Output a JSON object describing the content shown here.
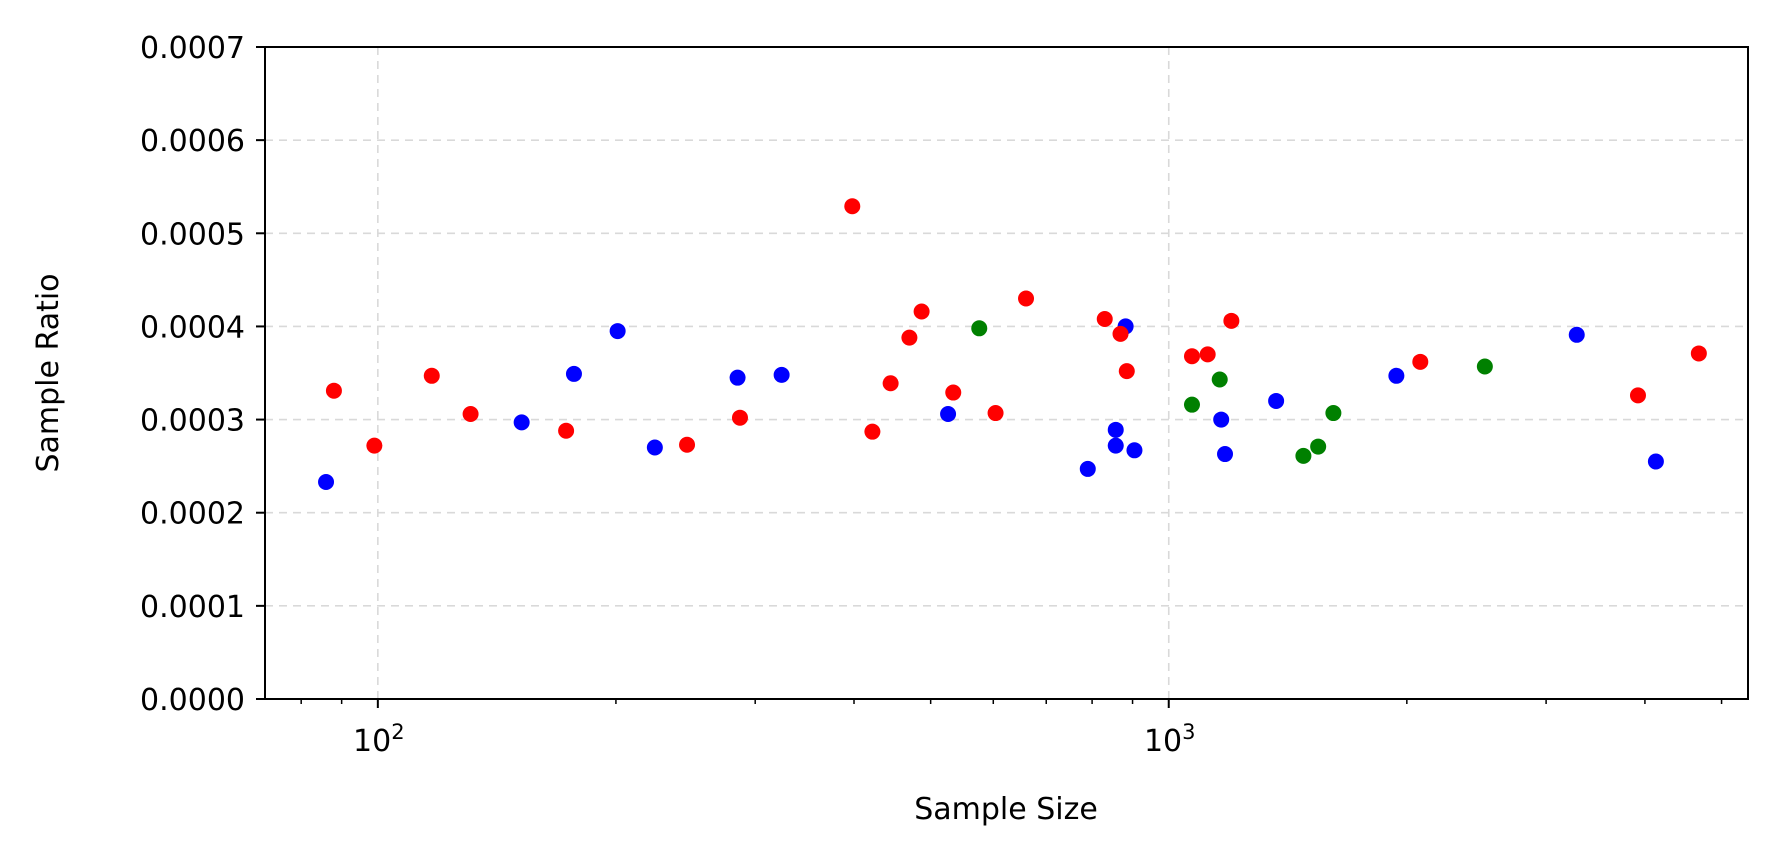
{
  "chart_data": {
    "type": "scatter",
    "title": "",
    "xlabel": "Sample Size",
    "ylabel": "Sample Ratio",
    "x_scale": "log",
    "xlim": [
      72,
      5400
    ],
    "ylim": [
      0,
      0.0007
    ],
    "yticks": [
      "0.0000",
      "0.0001",
      "0.0002",
      "0.0003",
      "0.0004",
      "0.0005",
      "0.0006",
      "0.0007"
    ],
    "xticks": [
      {
        "value": 100,
        "base": "10",
        "exp": "2"
      },
      {
        "value": 1000,
        "base": "10",
        "exp": "3"
      }
    ],
    "grid": true,
    "legend": "none",
    "series": [
      {
        "color": "#0000ff",
        "points": [
          {
            "x": 86,
            "y": 0.000233
          },
          {
            "x": 152,
            "y": 0.000297
          },
          {
            "x": 177,
            "y": 0.000349
          },
          {
            "x": 201,
            "y": 0.000395
          },
          {
            "x": 224,
            "y": 0.00027
          },
          {
            "x": 285,
            "y": 0.000345
          },
          {
            "x": 324,
            "y": 0.000348
          },
          {
            "x": 526,
            "y": 0.000306
          },
          {
            "x": 790,
            "y": 0.000247
          },
          {
            "x": 857,
            "y": 0.000289
          },
          {
            "x": 857,
            "y": 0.000272
          },
          {
            "x": 882,
            "y": 0.0004
          },
          {
            "x": 905,
            "y": 0.000267
          },
          {
            "x": 1165,
            "y": 0.0003
          },
          {
            "x": 1178,
            "y": 0.000263
          },
          {
            "x": 1367,
            "y": 0.00032
          },
          {
            "x": 1940,
            "y": 0.000347
          },
          {
            "x": 3280,
            "y": 0.000391
          },
          {
            "x": 4130,
            "y": 0.000255
          }
        ]
      },
      {
        "color": "#ff0000",
        "points": [
          {
            "x": 88,
            "y": 0.000331
          },
          {
            "x": 99,
            "y": 0.000272
          },
          {
            "x": 117,
            "y": 0.000347
          },
          {
            "x": 131,
            "y": 0.000306
          },
          {
            "x": 173,
            "y": 0.000288
          },
          {
            "x": 246,
            "y": 0.000273
          },
          {
            "x": 287,
            "y": 0.000302
          },
          {
            "x": 398,
            "y": 0.000529
          },
          {
            "x": 422,
            "y": 0.000287
          },
          {
            "x": 445,
            "y": 0.000339
          },
          {
            "x": 470,
            "y": 0.000388
          },
          {
            "x": 487,
            "y": 0.000416
          },
          {
            "x": 534,
            "y": 0.000329
          },
          {
            "x": 604,
            "y": 0.000307
          },
          {
            "x": 660,
            "y": 0.00043
          },
          {
            "x": 830,
            "y": 0.000408
          },
          {
            "x": 869,
            "y": 0.000392
          },
          {
            "x": 885,
            "y": 0.000352
          },
          {
            "x": 1070,
            "y": 0.000368
          },
          {
            "x": 1120,
            "y": 0.00037
          },
          {
            "x": 1200,
            "y": 0.000406
          },
          {
            "x": 2080,
            "y": 0.000362
          },
          {
            "x": 3920,
            "y": 0.000326
          },
          {
            "x": 4680,
            "y": 0.000371
          }
        ]
      },
      {
        "color": "#008000",
        "points": [
          {
            "x": 576,
            "y": 0.000398
          },
          {
            "x": 1070,
            "y": 0.000316
          },
          {
            "x": 1160,
            "y": 0.000343
          },
          {
            "x": 1480,
            "y": 0.000261
          },
          {
            "x": 1545,
            "y": 0.000271
          },
          {
            "x": 1615,
            "y": 0.000307
          },
          {
            "x": 2510,
            "y": 0.000357
          }
        ]
      }
    ]
  }
}
